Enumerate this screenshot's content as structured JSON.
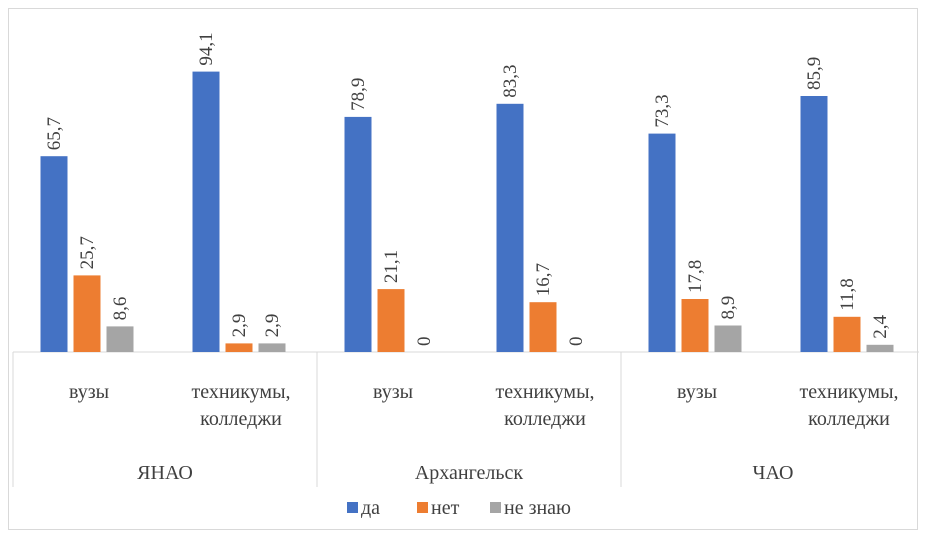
{
  "chart_data": {
    "type": "bar",
    "title": "",
    "groups": [
      {
        "name": "ЯНАО",
        "categories": [
          "вузы",
          "техникумы, колледжи"
        ]
      },
      {
        "name": "Архангельск",
        "categories": [
          "вузы",
          "техникумы, колледжи"
        ]
      },
      {
        "name": "ЧАО",
        "categories": [
          "вузы",
          "техникумы, колледжи"
        ]
      }
    ],
    "series": [
      {
        "name": "да",
        "color": "#4472C4",
        "values": [
          65.7,
          94.1,
          78.9,
          83.3,
          73.3,
          85.9
        ],
        "labels": [
          "65,7",
          "94,1",
          "78,9",
          "83,3",
          "73,3",
          "85,9"
        ]
      },
      {
        "name": "нет",
        "color": "#ED7D31",
        "values": [
          25.7,
          2.9,
          21.1,
          16.7,
          17.8,
          11.8
        ],
        "labels": [
          "25,7",
          "2,9",
          "21,1",
          "16,7",
          "17,8",
          "11,8"
        ]
      },
      {
        "name": "не знаю",
        "color": "#A5A5A5",
        "values": [
          8.6,
          2.9,
          0,
          0,
          8.9,
          2.4
        ],
        "labels": [
          "8,6",
          "2,9",
          "0",
          "0",
          "8,9",
          "2,4"
        ]
      }
    ],
    "ylim": [
      0,
      100
    ],
    "grid": false,
    "legend": "bottom"
  }
}
